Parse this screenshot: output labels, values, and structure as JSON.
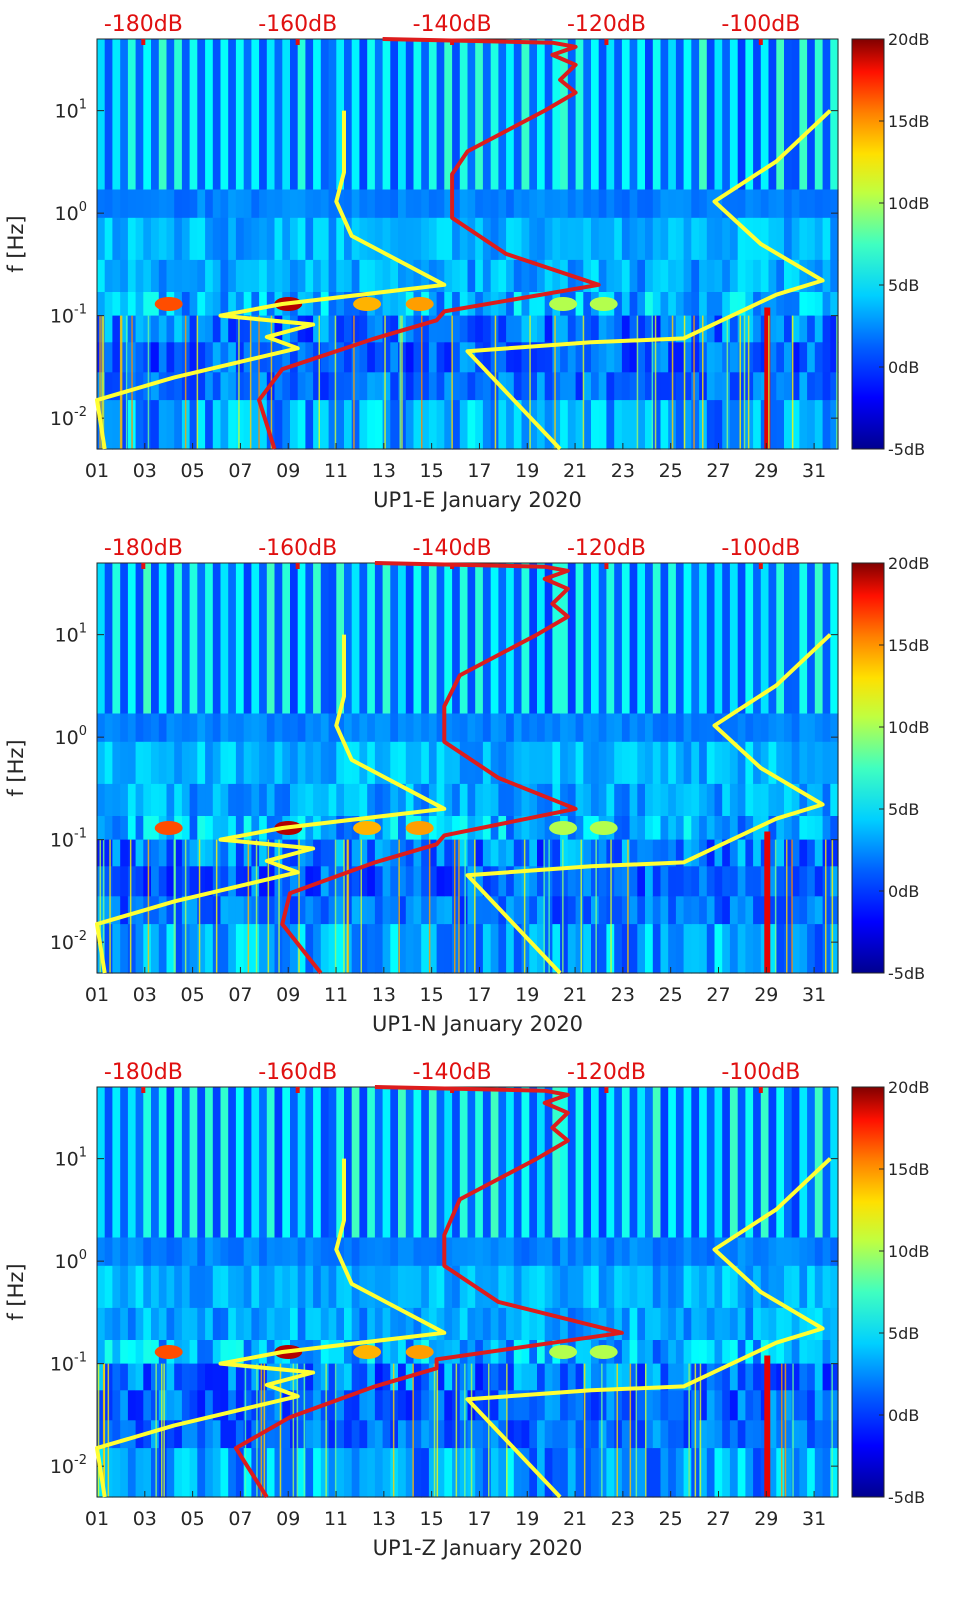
{
  "figure": {
    "colormap": [
      "#00008f",
      "#0000ff",
      "#0080ff",
      "#00ffff",
      "#80ff80",
      "#ffff00",
      "#ff8000",
      "#ff0000",
      "#800000"
    ],
    "line_colors": {
      "noise_model": "#ffff33",
      "median": "#dd1c1c",
      "top_axis_text": "#e01010"
    }
  },
  "chart_data": [
    {
      "type": "heatmap",
      "xlabel": "UP1-E January 2020",
      "ylabel": "f [Hz]",
      "x_ticks": [
        "01",
        "03",
        "05",
        "07",
        "09",
        "11",
        "13",
        "15",
        "17",
        "19",
        "21",
        "23",
        "25",
        "27",
        "29",
        "31"
      ],
      "xlim_day": [
        1,
        32
      ],
      "y_ticks": [
        {
          "base": "10",
          "exp": "-2",
          "value": 0.01
        },
        {
          "base": "10",
          "exp": "-1",
          "value": 0.1
        },
        {
          "base": "10",
          "exp": "0",
          "value": 1
        },
        {
          "base": "10",
          "exp": "1",
          "value": 10
        }
      ],
      "ylim_hz": [
        0.005,
        50
      ],
      "top_axis_ticks": [
        {
          "label": "-180dB",
          "value": -180
        },
        {
          "label": "-160dB",
          "value": -160
        },
        {
          "label": "-140dB",
          "value": -140
        },
        {
          "label": "-120dB",
          "value": -120
        },
        {
          "label": "-100dB",
          "value": -100
        }
      ],
      "top_axis_range_db": [
        -186,
        -90
      ],
      "colorbar": {
        "ticks": [
          "20dB",
          "15dB",
          "10dB",
          "5dB",
          "0dB",
          "-5dB"
        ],
        "range_db": [
          -5,
          20
        ]
      },
      "series": [
        {
          "name": "noise-model-low",
          "x_db": [
            -185,
            -186,
            -176,
            -160,
            -164,
            -158,
            -170,
            -162,
            -141,
            -153,
            -155,
            -154,
            -154
          ],
          "f_hz": [
            0.005,
            0.015,
            0.025,
            0.048,
            0.062,
            0.082,
            0.1,
            0.13,
            0.2,
            0.6,
            1.3,
            2.5,
            10
          ]
        },
        {
          "name": "noise-model-high",
          "x_db": [
            -126,
            -138,
            -122,
            -110,
            -98,
            -92,
            -100,
            -106,
            -98,
            -91
          ],
          "f_hz": [
            0.005,
            0.045,
            0.055,
            0.06,
            0.16,
            0.22,
            0.5,
            1.3,
            3.2,
            10
          ]
        },
        {
          "name": "median",
          "x_db": [
            -163,
            -165,
            -162,
            -150,
            -142,
            -141,
            -121,
            -133,
            -140,
            -140,
            -138,
            -128,
            -124,
            -126,
            -124,
            -127,
            -124,
            -127,
            -149
          ],
          "f_hz": [
            0.005,
            0.015,
            0.03,
            0.06,
            0.09,
            0.11,
            0.2,
            0.4,
            0.9,
            2.4,
            4.0,
            10,
            15,
            20,
            28,
            35,
            42,
            46,
            50
          ]
        }
      ]
    },
    {
      "type": "heatmap",
      "xlabel": "UP1-N January 2020",
      "ylabel": "f [Hz]",
      "x_ticks": [
        "01",
        "03",
        "05",
        "07",
        "09",
        "11",
        "13",
        "15",
        "17",
        "19",
        "21",
        "23",
        "25",
        "27",
        "29",
        "31"
      ],
      "xlim_day": [
        1,
        32
      ],
      "y_ticks": [
        {
          "base": "10",
          "exp": "-2",
          "value": 0.01
        },
        {
          "base": "10",
          "exp": "-1",
          "value": 0.1
        },
        {
          "base": "10",
          "exp": "0",
          "value": 1
        },
        {
          "base": "10",
          "exp": "1",
          "value": 10
        }
      ],
      "ylim_hz": [
        0.005,
        50
      ],
      "top_axis_ticks": [
        {
          "label": "-180dB",
          "value": -180
        },
        {
          "label": "-160dB",
          "value": -160
        },
        {
          "label": "-140dB",
          "value": -140
        },
        {
          "label": "-120dB",
          "value": -120
        },
        {
          "label": "-100dB",
          "value": -100
        }
      ],
      "top_axis_range_db": [
        -186,
        -90
      ],
      "colorbar": {
        "ticks": [
          "20dB",
          "15dB",
          "10dB",
          "5dB",
          "0dB",
          "-5dB"
        ],
        "range_db": [
          -5,
          20
        ]
      },
      "series": [
        {
          "name": "noise-model-low",
          "x_db": [
            -185,
            -186,
            -176,
            -160,
            -164,
            -158,
            -170,
            -162,
            -141,
            -153,
            -155,
            -154,
            -154
          ],
          "f_hz": [
            0.005,
            0.015,
            0.025,
            0.048,
            0.062,
            0.082,
            0.1,
            0.13,
            0.2,
            0.6,
            1.3,
            2.5,
            10
          ]
        },
        {
          "name": "noise-model-high",
          "x_db": [
            -126,
            -138,
            -122,
            -110,
            -98,
            -92,
            -100,
            -106,
            -98,
            -91
          ],
          "f_hz": [
            0.005,
            0.045,
            0.055,
            0.06,
            0.16,
            0.22,
            0.5,
            1.3,
            3.2,
            10
          ]
        },
        {
          "name": "median",
          "x_db": [
            -157,
            -162,
            -161,
            -150,
            -142,
            -141,
            -124,
            -134,
            -141,
            -141,
            -139,
            -129,
            -125,
            -127,
            -125,
            -128,
            -125,
            -128,
            -150
          ],
          "f_hz": [
            0.005,
            0.015,
            0.03,
            0.06,
            0.09,
            0.11,
            0.2,
            0.4,
            0.9,
            2.0,
            4.0,
            10,
            15,
            20,
            28,
            35,
            42,
            46,
            50
          ]
        }
      ]
    },
    {
      "type": "heatmap",
      "xlabel": "UP1-Z January 2020",
      "ylabel": "f [Hz]",
      "x_ticks": [
        "01",
        "03",
        "05",
        "07",
        "09",
        "11",
        "13",
        "15",
        "17",
        "19",
        "21",
        "23",
        "25",
        "27",
        "29",
        "31"
      ],
      "xlim_day": [
        1,
        32
      ],
      "y_ticks": [
        {
          "base": "10",
          "exp": "-2",
          "value": 0.01
        },
        {
          "base": "10",
          "exp": "-1",
          "value": 0.1
        },
        {
          "base": "10",
          "exp": "0",
          "value": 1
        },
        {
          "base": "10",
          "exp": "1",
          "value": 10
        }
      ],
      "ylim_hz": [
        0.005,
        50
      ],
      "top_axis_ticks": [
        {
          "label": "-180dB",
          "value": -180
        },
        {
          "label": "-160dB",
          "value": -160
        },
        {
          "label": "-140dB",
          "value": -140
        },
        {
          "label": "-120dB",
          "value": -120
        },
        {
          "label": "-100dB",
          "value": -100
        }
      ],
      "top_axis_range_db": [
        -186,
        -90
      ],
      "colorbar": {
        "ticks": [
          "20dB",
          "15dB",
          "10dB",
          "5dB",
          "0dB",
          "-5dB"
        ],
        "range_db": [
          -5,
          20
        ]
      },
      "series": [
        {
          "name": "noise-model-low",
          "x_db": [
            -185,
            -186,
            -176,
            -160,
            -164,
            -158,
            -170,
            -162,
            -141,
            -153,
            -155,
            -154,
            -154
          ],
          "f_hz": [
            0.005,
            0.015,
            0.025,
            0.048,
            0.062,
            0.082,
            0.1,
            0.13,
            0.2,
            0.6,
            1.3,
            2.5,
            10
          ]
        },
        {
          "name": "noise-model-high",
          "x_db": [
            -126,
            -138,
            -122,
            -110,
            -98,
            -92,
            -100,
            -106,
            -98,
            -91
          ],
          "f_hz": [
            0.005,
            0.045,
            0.055,
            0.06,
            0.16,
            0.22,
            0.5,
            1.3,
            3.2,
            10
          ]
        },
        {
          "name": "median",
          "x_db": [
            -164,
            -168,
            -161,
            -150,
            -142,
            -142,
            -118,
            -134,
            -141,
            -141,
            -139,
            -129,
            -125,
            -127,
            -125,
            -128,
            -125,
            -128,
            -150
          ],
          "f_hz": [
            0.005,
            0.015,
            0.03,
            0.06,
            0.09,
            0.11,
            0.2,
            0.4,
            0.9,
            1.8,
            4.0,
            10,
            15,
            20,
            28,
            35,
            42,
            46,
            50
          ]
        }
      ]
    }
  ]
}
